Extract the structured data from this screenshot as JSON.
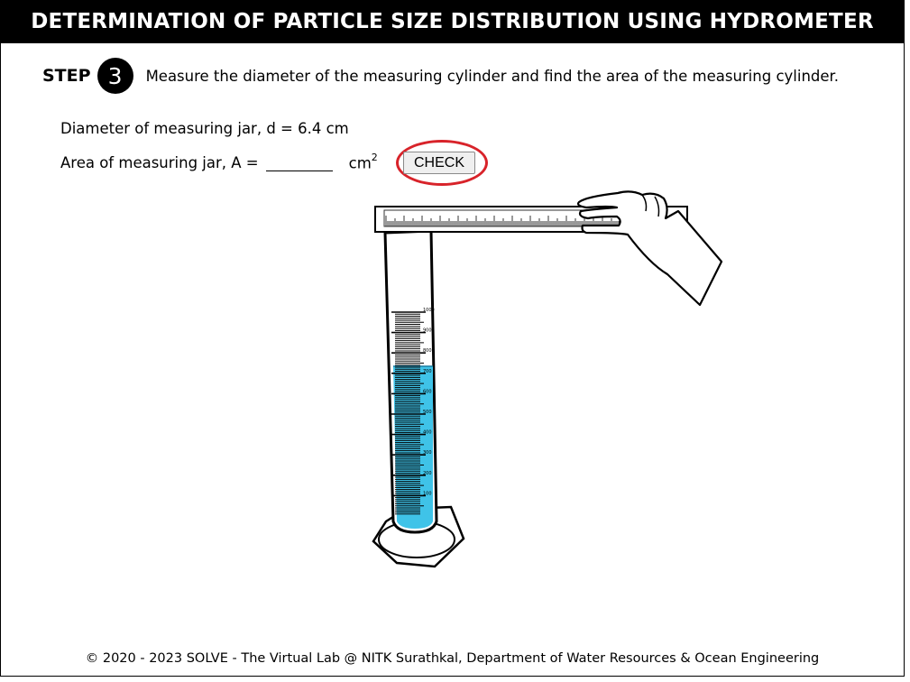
{
  "header": {
    "title": "DETERMINATION OF PARTICLE SIZE DISTRIBUTION USING HYDROMETER"
  },
  "step": {
    "label": "STEP",
    "number": "3",
    "instruction": "Measure the diameter of the measuring cylinder and find the area of the measuring cylinder."
  },
  "diameter": {
    "text": "Diameter of measuring jar, d = 6.4 cm"
  },
  "area": {
    "label": "Area of measuring jar, A =",
    "value": "",
    "unit": "cm",
    "unit_exponent": "2"
  },
  "check_button": {
    "label": "CHECK"
  },
  "cylinder": {
    "markings": [
      "1000",
      "900",
      "800",
      "700",
      "600",
      "500",
      "400",
      "300",
      "200",
      "100"
    ]
  },
  "footer": {
    "text": "© 2020 - 2023 SOLVE - The Virtual Lab @ NITK Surathkal, Department of Water Resources & Ocean Engineering"
  },
  "colors": {
    "header_bg": "#000000",
    "water": "#3fc3e8",
    "highlight_ring": "#d8232a"
  },
  "icons": {
    "hand": "hand-icon",
    "ruler": "ruler-icon",
    "cylinder": "measuring-cylinder-icon"
  }
}
